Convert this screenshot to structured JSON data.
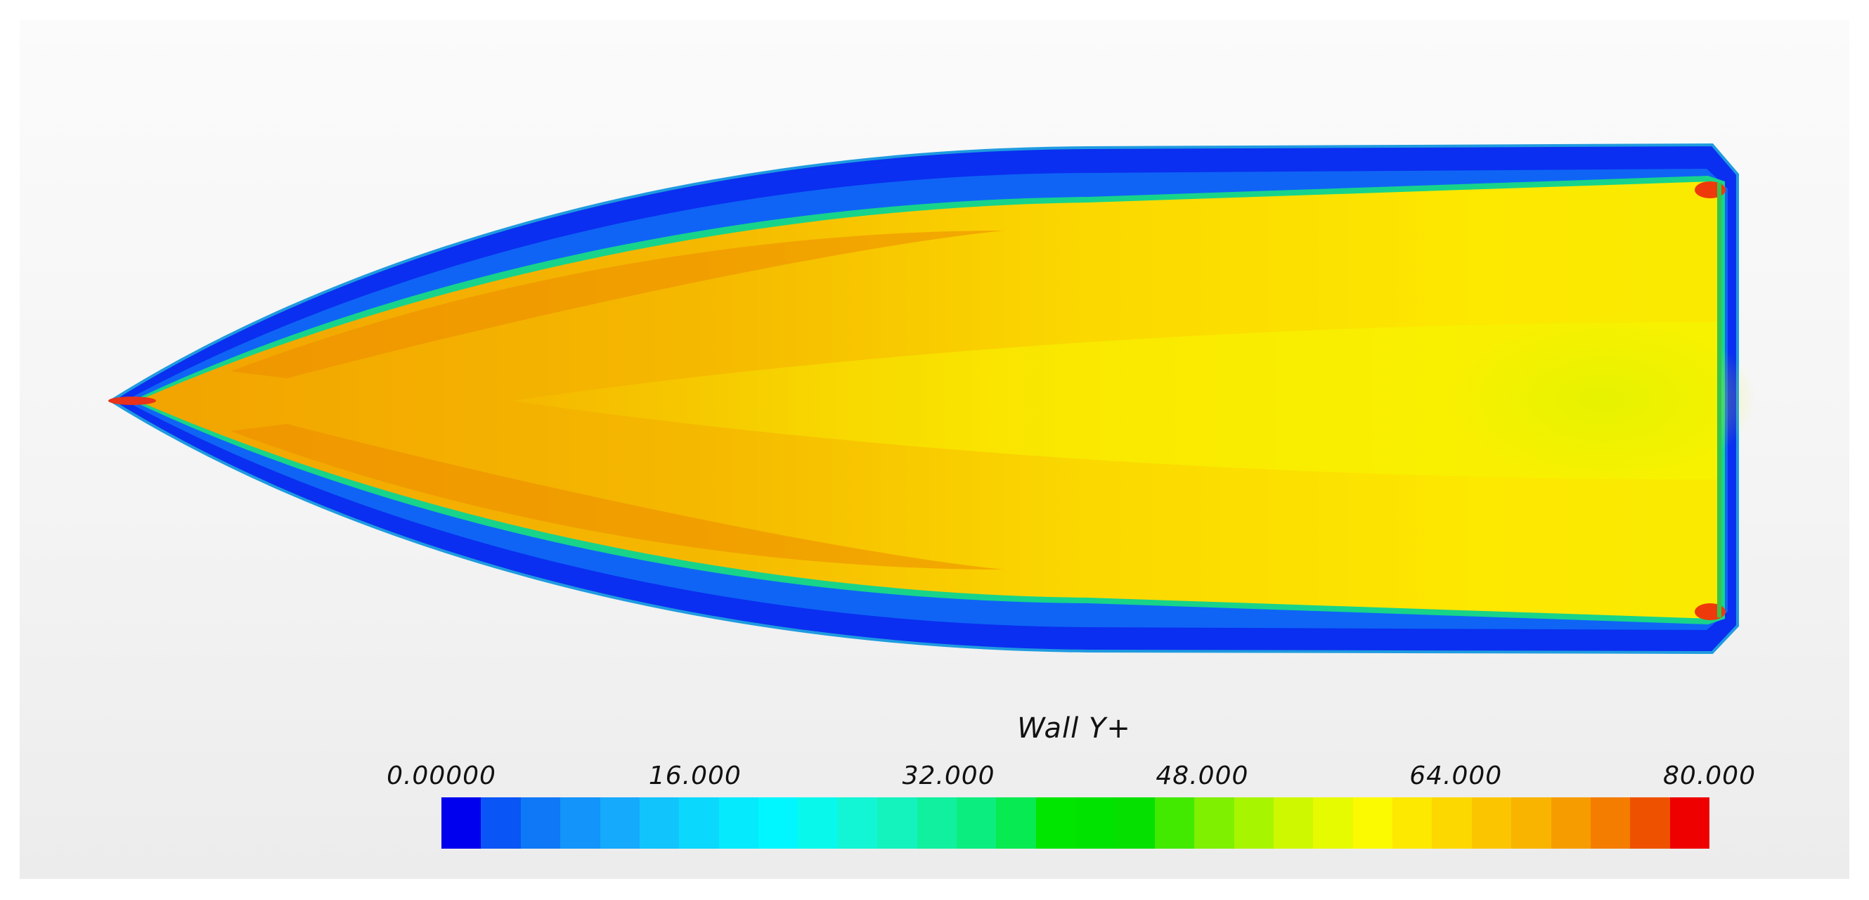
{
  "legend": {
    "title": "Wall Y+",
    "tick_labels": [
      "0.00000",
      "16.000",
      "32.000",
      "48.000",
      "64.000",
      "80.000"
    ],
    "range": [
      0,
      80
    ],
    "segments": 32,
    "colors": [
      "#0000ee",
      "#0a55f5",
      "#0f78f7",
      "#1294fa",
      "#15aafb",
      "#12c4fc",
      "#0ad8fd",
      "#05eafd",
      "#00f7ff",
      "#08f9ec",
      "#12f6d5",
      "#14f3bd",
      "#10f09f",
      "#0ced7f",
      "#08ea52",
      "#00e600",
      "#00e300",
      "#06e000",
      "#42ea00",
      "#7ff000",
      "#a8f500",
      "#cef800",
      "#e6fa00",
      "#fbfa00",
      "#fde800",
      "#fdd700",
      "#fbc600",
      "#f9b400",
      "#f79c00",
      "#f47d00",
      "#ee5200",
      "#ee0000"
    ]
  },
  "field": {
    "description_colors": {
      "low": "#0033ee",
      "edge": "#1ea0ff",
      "mid": "#f3b800",
      "high": "#ffee00",
      "peak": "#e2f200"
    }
  }
}
